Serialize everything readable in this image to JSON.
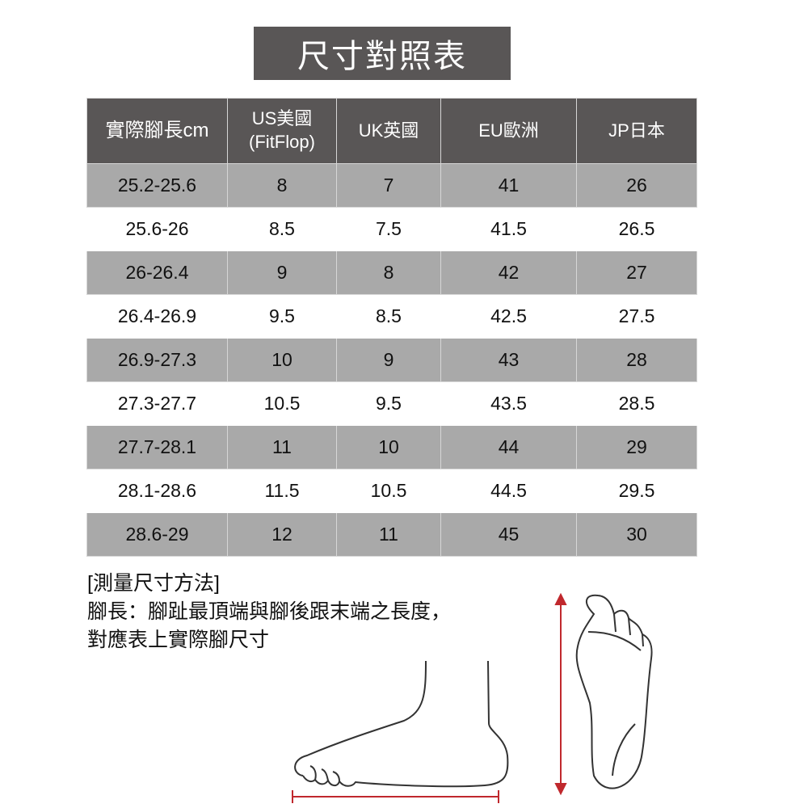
{
  "title": "尺寸對照表",
  "table": {
    "headers": [
      "實際腳長cm",
      "US美國\n(FitFlop)",
      "UK英國",
      "EU歐洲",
      "JP日本"
    ],
    "header_us_line1": "US美國",
    "header_us_line2": "(FitFlop)",
    "rows": [
      [
        "25.2-25.6",
        "8",
        "7",
        "41",
        "26"
      ],
      [
        "25.6-26",
        "8.5",
        "7.5",
        "41.5",
        "26.5"
      ],
      [
        "26-26.4",
        "9",
        "8",
        "42",
        "27"
      ],
      [
        "26.4-26.9",
        "9.5",
        "8.5",
        "42.5",
        "27.5"
      ],
      [
        "26.9-27.3",
        "10",
        "9",
        "43",
        "28"
      ],
      [
        "27.3-27.7",
        "10.5",
        "9.5",
        "43.5",
        "28.5"
      ],
      [
        "27.7-28.1",
        "11",
        "10",
        "44",
        "29"
      ],
      [
        "28.1-28.6",
        "11.5",
        "10.5",
        "44.5",
        "29.5"
      ],
      [
        "28.6-29",
        "12",
        "11",
        "45",
        "30"
      ]
    ]
  },
  "measure": {
    "heading": "[測量尺寸方法]",
    "line1": "腳長：腳趾最頂端與腳後跟末端之長度，",
    "line2": "對應表上實際腳尺寸"
  },
  "colors": {
    "header_bg": "#595656",
    "shaded_row": "#a9a9a9",
    "arrow": "#c0282d"
  }
}
